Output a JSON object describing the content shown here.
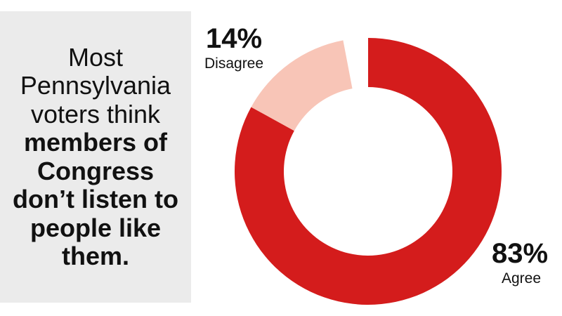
{
  "headline": {
    "light": "Most Pennsylvania voters think",
    "bold": "members of Congress don’t listen to people like them."
  },
  "chart_data": {
    "type": "pie",
    "subtype": "donut",
    "slices": [
      {
        "label": "Agree",
        "value": 83,
        "display": "83%",
        "color": "#d41c1c"
      },
      {
        "label": "Disagree",
        "value": 14,
        "display": "14%",
        "color": "#f8c5b7"
      }
    ],
    "start_angle_deg": 0,
    "direction": "clockwise"
  },
  "colors": {
    "panel": "#ebebeb",
    "agree": "#d41c1c",
    "disagree": "#f8c5b7",
    "text": "#111111"
  }
}
